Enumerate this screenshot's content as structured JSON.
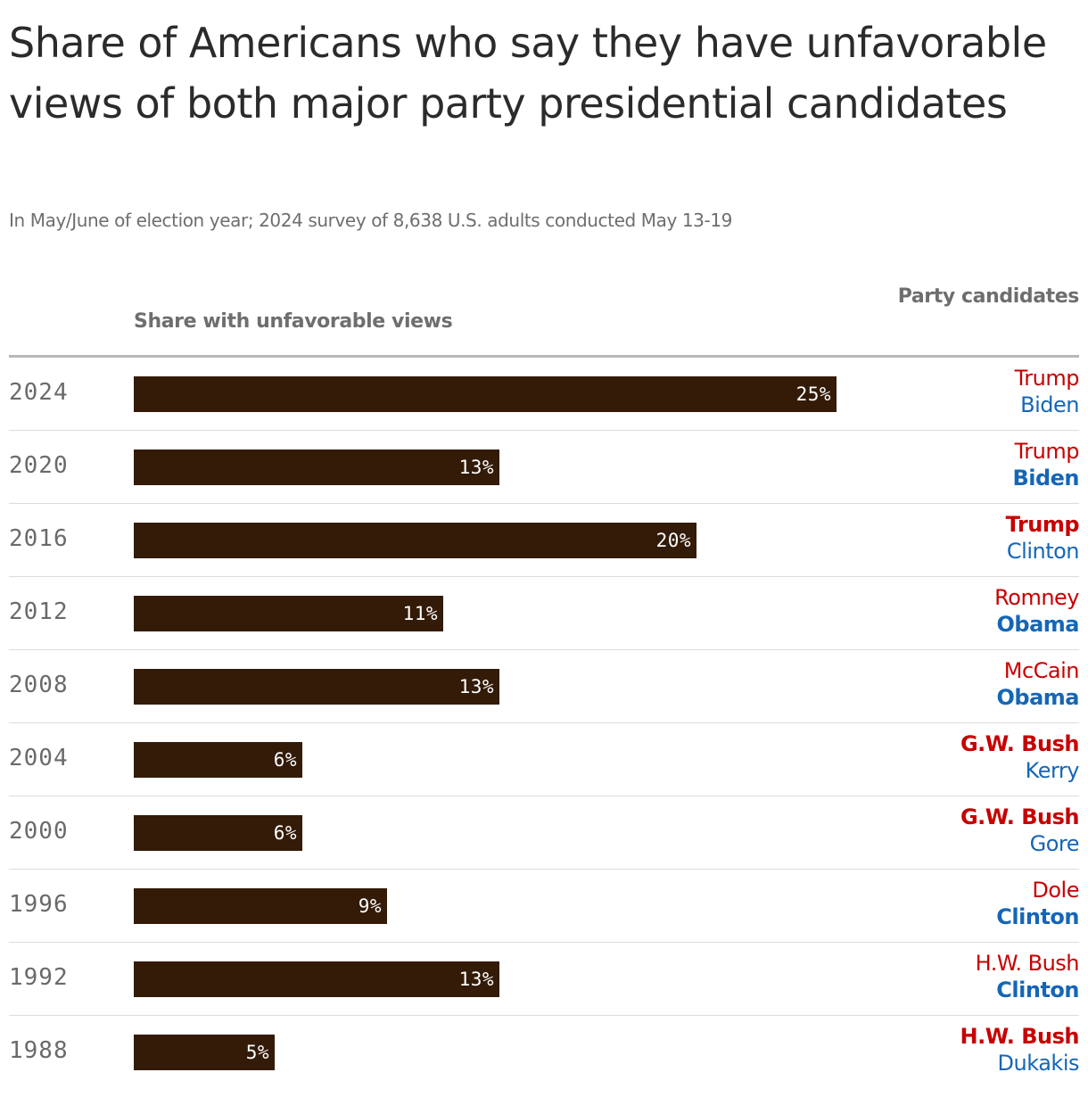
{
  "title": "Share of Americans who say they have unfavorable views of both major party presidential candidates",
  "subtitle": "In May/June of election year; 2024 survey of 8,638 U.S. adults conducted May 13-19",
  "column_headers": {
    "bars": "Share with unfavorable views",
    "party": "Party candidates"
  },
  "colors": {
    "bar": "#331b08",
    "republican": "#c70000",
    "democrat": "#1566b7"
  },
  "chart_data": {
    "type": "bar",
    "orientation": "horizontal",
    "categories": [
      "2024",
      "2020",
      "2016",
      "2012",
      "2008",
      "2004",
      "2000",
      "1996",
      "1992",
      "1988"
    ],
    "values": [
      25,
      13,
      20,
      11,
      13,
      6,
      6,
      9,
      13,
      5
    ],
    "value_labels": [
      "25%",
      "13%",
      "20%",
      "11%",
      "13%",
      "6%",
      "6%",
      "9%",
      "13%",
      "5%"
    ],
    "unit": "%",
    "xlim": [
      0,
      33.3
    ],
    "title": "Share of Americans who say they have unfavorable views of both major party presidential candidates",
    "xlabel": "Share with unfavorable views",
    "grid": false,
    "candidates": [
      {
        "rep": "Trump",
        "dem": "Biden",
        "winner": "none"
      },
      {
        "rep": "Trump",
        "dem": "Biden",
        "winner": "dem"
      },
      {
        "rep": "Trump",
        "dem": "Clinton",
        "winner": "rep"
      },
      {
        "rep": "Romney",
        "dem": "Obama",
        "winner": "dem"
      },
      {
        "rep": "McCain",
        "dem": "Obama",
        "winner": "dem"
      },
      {
        "rep": "G.W. Bush",
        "dem": "Kerry",
        "winner": "rep"
      },
      {
        "rep": "G.W. Bush",
        "dem": "Gore",
        "winner": "rep"
      },
      {
        "rep": "Dole",
        "dem": "Clinton",
        "winner": "dem"
      },
      {
        "rep": "H.W. Bush",
        "dem": "Clinton",
        "winner": "dem"
      },
      {
        "rep": "H.W. Bush",
        "dem": "Dukakis",
        "winner": "rep"
      }
    ]
  }
}
